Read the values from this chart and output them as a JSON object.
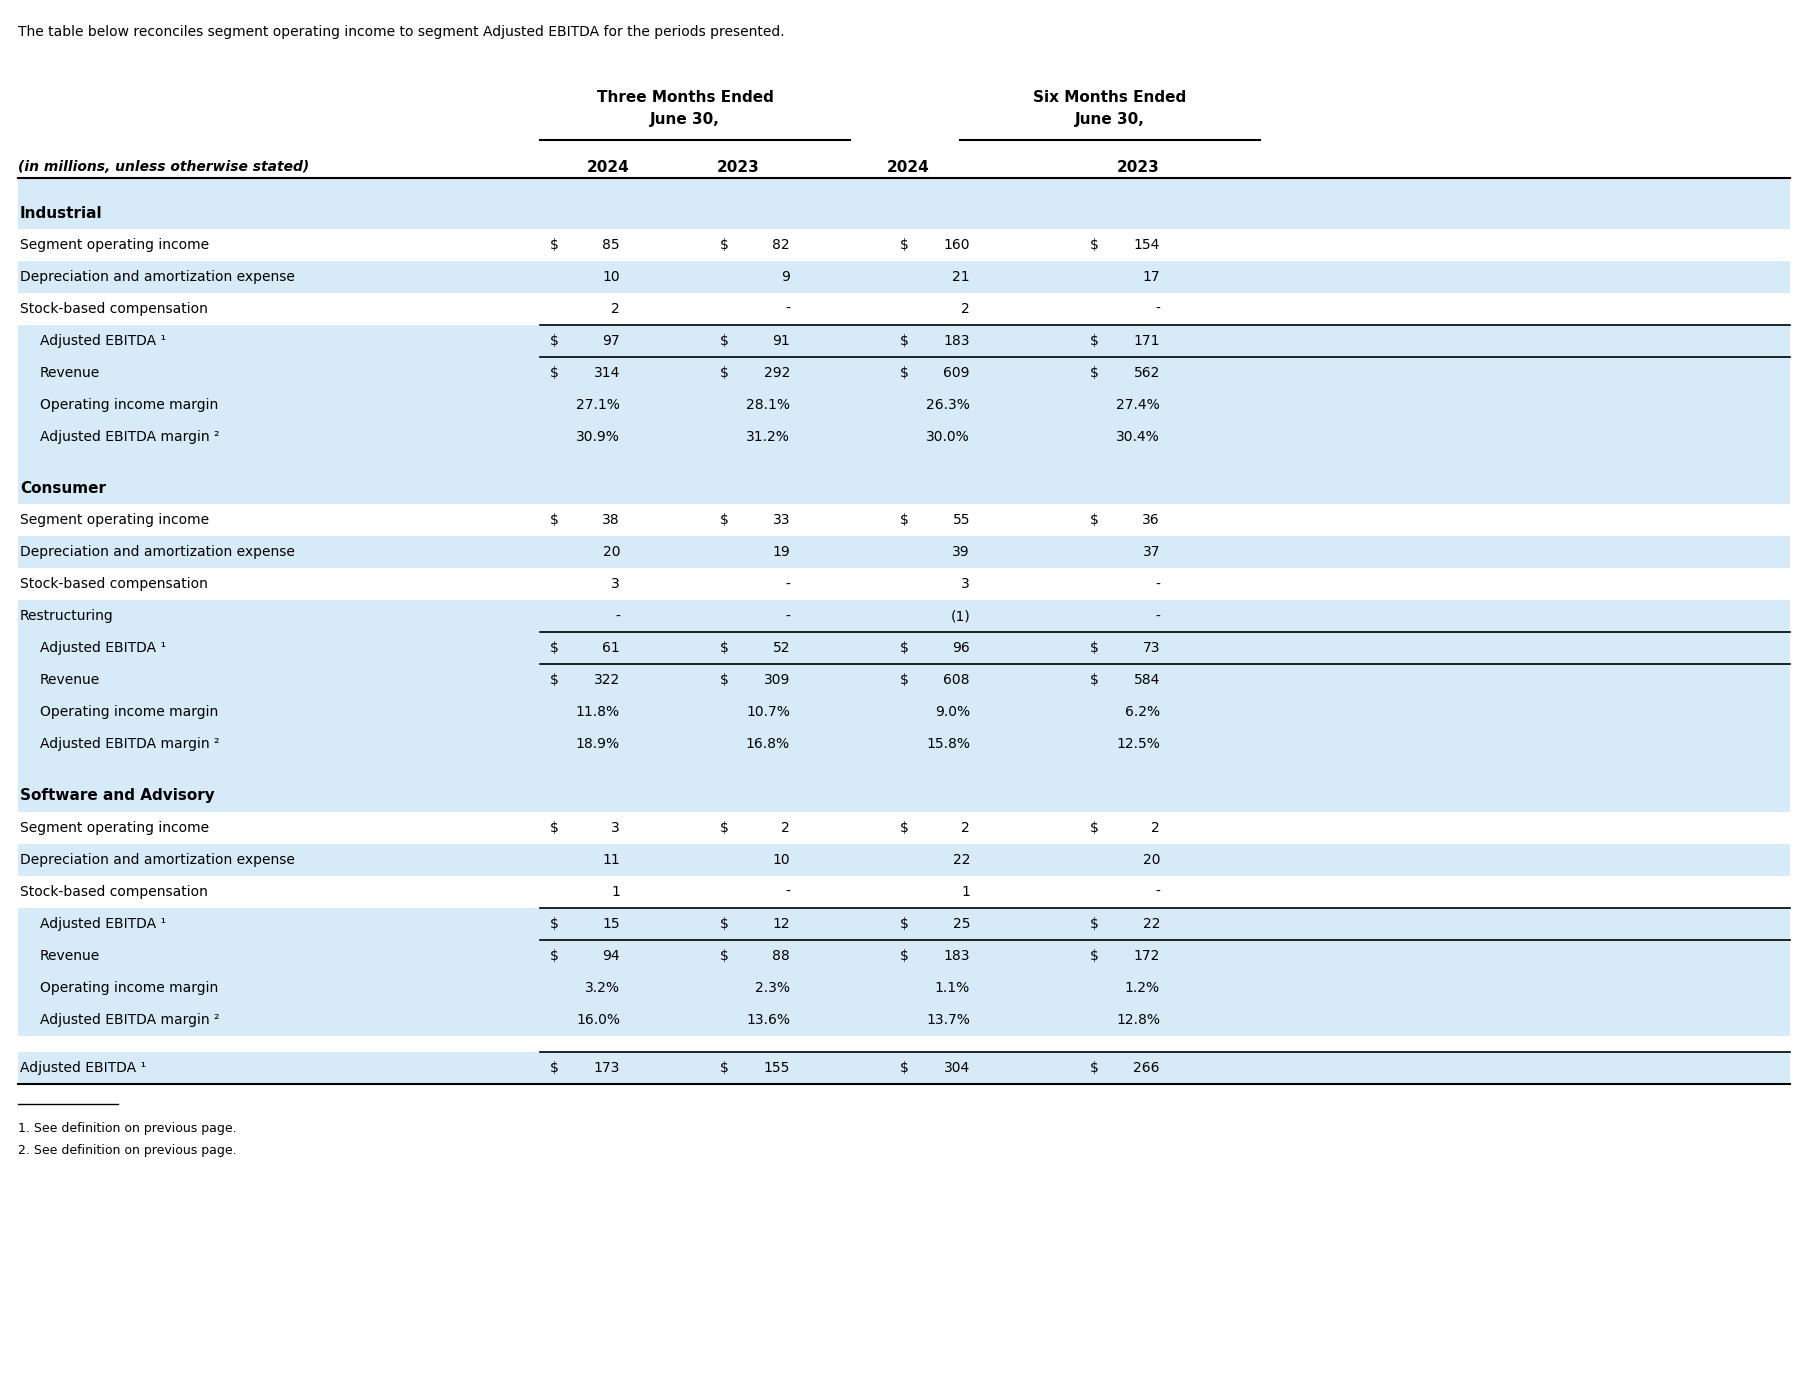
{
  "intro_text": "The table below reconciles segment operating income to segment Adjusted EBITDA for the periods presented.",
  "header1_left": "Three Months Ended",
  "header1_right": "Six Months Ended",
  "header2_left": "June 30,",
  "header2_right": "June 30,",
  "col_headers": [
    "(in millions, unless otherwise stated)",
    "2024",
    "2023",
    "2024",
    "2023"
  ],
  "sections": [
    {
      "name": "Industrial",
      "rows": [
        {
          "label": "Segment operating income",
          "dollar": true,
          "values": [
            "85",
            "82",
            "160",
            "154"
          ],
          "bg": "white",
          "bold": false
        },
        {
          "label": "Depreciation and amortization expense",
          "dollar": false,
          "values": [
            "10",
            "9",
            "21",
            "17"
          ],
          "bg": "light_blue",
          "bold": false
        },
        {
          "label": "Stock-based compensation",
          "dollar": false,
          "values": [
            "2",
            "-",
            "2",
            "-"
          ],
          "bg": "white",
          "bold": false
        },
        {
          "label": "Adjusted EBITDA ¹",
          "dollar": true,
          "values": [
            "97",
            "91",
            "183",
            "171"
          ],
          "bg": "light_blue",
          "indent": true,
          "bold": false,
          "top_border": true,
          "bottom_border": true
        },
        {
          "label": "Revenue",
          "dollar": true,
          "values": [
            "314",
            "292",
            "609",
            "562"
          ],
          "bg": "light_blue",
          "indent": true,
          "bold": false
        },
        {
          "label": "Operating income margin",
          "dollar": false,
          "values": [
            "27.1%",
            "28.1%",
            "26.3%",
            "27.4%"
          ],
          "bg": "light_blue",
          "indent": true,
          "bold": false
        },
        {
          "label": "Adjusted EBITDA margin ²",
          "dollar": false,
          "values": [
            "30.9%",
            "31.2%",
            "30.0%",
            "30.4%"
          ],
          "bg": "light_blue",
          "indent": true,
          "bold": false
        }
      ]
    },
    {
      "name": "Consumer",
      "rows": [
        {
          "label": "Segment operating income",
          "dollar": true,
          "values": [
            "38",
            "33",
            "55",
            "36"
          ],
          "bg": "white",
          "bold": false
        },
        {
          "label": "Depreciation and amortization expense",
          "dollar": false,
          "values": [
            "20",
            "19",
            "39",
            "37"
          ],
          "bg": "light_blue",
          "bold": false
        },
        {
          "label": "Stock-based compensation",
          "dollar": false,
          "values": [
            "3",
            "-",
            "3",
            "-"
          ],
          "bg": "white",
          "bold": false
        },
        {
          "label": "Restructuring",
          "dollar": false,
          "values": [
            "-",
            "-",
            "(1)",
            "-"
          ],
          "bg": "light_blue",
          "bold": false
        },
        {
          "label": "Adjusted EBITDA ¹",
          "dollar": true,
          "values": [
            "61",
            "52",
            "96",
            "73"
          ],
          "bg": "light_blue",
          "indent": true,
          "bold": false,
          "top_border": true,
          "bottom_border": true
        },
        {
          "label": "Revenue",
          "dollar": true,
          "values": [
            "322",
            "309",
            "608",
            "584"
          ],
          "bg": "light_blue",
          "indent": true,
          "bold": false
        },
        {
          "label": "Operating income margin",
          "dollar": false,
          "values": [
            "11.8%",
            "10.7%",
            "9.0%",
            "6.2%"
          ],
          "bg": "light_blue",
          "indent": true,
          "bold": false
        },
        {
          "label": "Adjusted EBITDA margin ²",
          "dollar": false,
          "values": [
            "18.9%",
            "16.8%",
            "15.8%",
            "12.5%"
          ],
          "bg": "light_blue",
          "indent": true,
          "bold": false
        }
      ]
    },
    {
      "name": "Software and Advisory",
      "rows": [
        {
          "label": "Segment operating income",
          "dollar": true,
          "values": [
            "3",
            "2",
            "2",
            "2"
          ],
          "bg": "white",
          "bold": false
        },
        {
          "label": "Depreciation and amortization expense",
          "dollar": false,
          "values": [
            "11",
            "10",
            "22",
            "20"
          ],
          "bg": "light_blue",
          "bold": false
        },
        {
          "label": "Stock-based compensation",
          "dollar": false,
          "values": [
            "1",
            "-",
            "1",
            "-"
          ],
          "bg": "white",
          "bold": false
        },
        {
          "label": "Adjusted EBITDA ¹",
          "dollar": true,
          "values": [
            "15",
            "12",
            "25",
            "22"
          ],
          "bg": "light_blue",
          "indent": true,
          "bold": false,
          "top_border": true,
          "bottom_border": true
        },
        {
          "label": "Revenue",
          "dollar": true,
          "values": [
            "94",
            "88",
            "183",
            "172"
          ],
          "bg": "light_blue",
          "indent": true,
          "bold": false
        },
        {
          "label": "Operating income margin",
          "dollar": false,
          "values": [
            "3.2%",
            "2.3%",
            "1.1%",
            "1.2%"
          ],
          "bg": "light_blue",
          "indent": true,
          "bold": false
        },
        {
          "label": "Adjusted EBITDA margin ²",
          "dollar": false,
          "values": [
            "16.0%",
            "13.6%",
            "13.7%",
            "12.8%"
          ],
          "bg": "light_blue",
          "indent": true,
          "bold": false
        }
      ]
    }
  ],
  "total_row": {
    "label": "Adjusted EBITDA ¹",
    "dollar": true,
    "values": [
      "173",
      "155",
      "304",
      "266"
    ],
    "bg": "light_blue",
    "top_border": true,
    "bottom_border": true
  },
  "footnotes": [
    "1. See definition on previous page.",
    "2. See definition on previous page."
  ],
  "light_blue": "#d6eaf8",
  "white": "#ffffff",
  "dark_blue_header": "#cce8f4",
  "text_color": "#000000",
  "border_color": "#000000"
}
